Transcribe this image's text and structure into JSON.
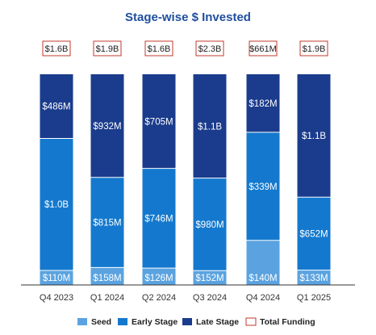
{
  "chart_data": {
    "type": "bar",
    "stacked": true,
    "title": "Stage-wise $ Invested",
    "categories": [
      "Q4 2023",
      "Q1 2024",
      "Q2 2024",
      "Q3 2024",
      "Q4 2024",
      "Q1 2025"
    ],
    "series": [
      {
        "name": "Seed",
        "color": "#5BA3E0",
        "values": [
          0.11,
          0.158,
          0.126,
          0.152,
          0.14,
          0.133
        ],
        "labels": [
          "$110M",
          "$158M",
          "$126M",
          "$152M",
          "$140M",
          "$133M"
        ]
      },
      {
        "name": "Early Stage",
        "color": "#1479CE",
        "values": [
          1.0,
          0.815,
          0.746,
          0.98,
          0.339,
          0.652
        ],
        "labels": [
          "$1.0B",
          "$815M",
          "$746M",
          "$980M",
          "$339M",
          "$652M"
        ]
      },
      {
        "name": "Late Stage",
        "color": "#1B3C8C",
        "values": [
          0.486,
          0.932,
          0.705,
          1.1,
          0.182,
          1.1
        ],
        "labels": [
          "$486M",
          "$932M",
          "$705M",
          "$1.1B",
          "$182M",
          "$1.1B"
        ]
      }
    ],
    "totals": {
      "name": "Total Funding",
      "labels": [
        "$1.6B",
        "$1.9B",
        "$1.6B",
        "$2.3B",
        "$661M",
        "$1.9B"
      ]
    },
    "value_axis_shown": false,
    "grid": false,
    "legend_position": "bottom"
  },
  "colors": {
    "title": "#1F4E9E",
    "total_box_border": "#C0392B",
    "axis": "#333333"
  }
}
